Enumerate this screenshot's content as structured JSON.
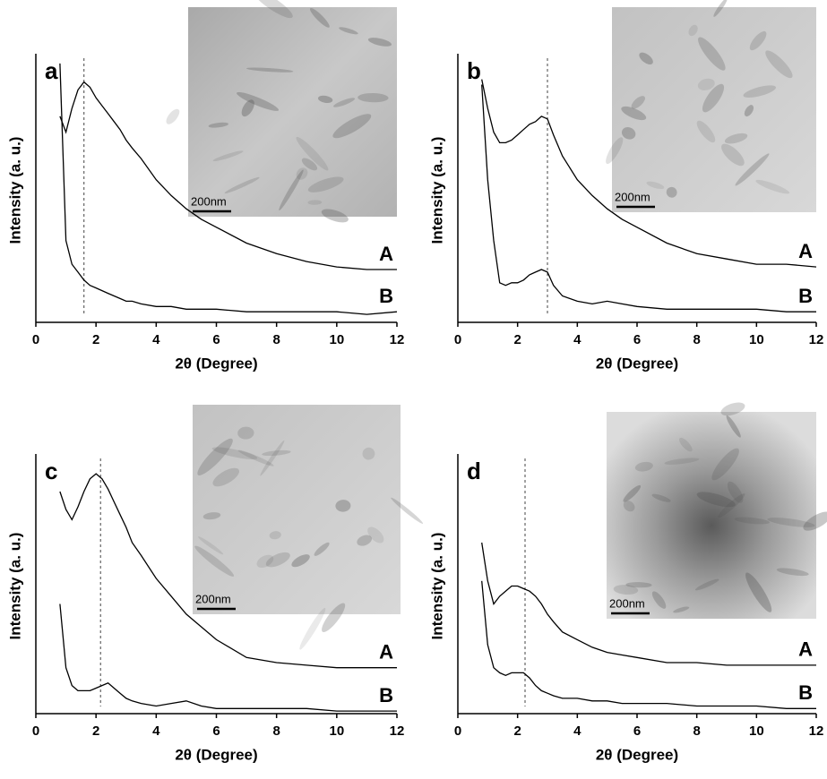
{
  "chart_data": [
    {
      "type": "line",
      "panel": "a",
      "xlabel": "2θ (Degree)",
      "ylabel": "Intensity (a. u.)",
      "xlim": [
        0,
        12
      ],
      "xticks": [
        0,
        2,
        4,
        6,
        8,
        10,
        12
      ],
      "ylim": [
        0,
        100
      ],
      "peak_x": 1.6,
      "inset_scale": "200nm",
      "x": [
        0.8,
        1,
        1.2,
        1.4,
        1.6,
        1.8,
        2,
        2.2,
        2.4,
        2.6,
        2.8,
        3,
        3.2,
        3.5,
        4,
        4.5,
        5,
        5.5,
        6,
        7,
        8,
        9,
        10,
        11,
        12
      ],
      "series": [
        {
          "name": "A",
          "color": "#000000",
          "values": [
            78,
            72,
            81,
            88,
            91,
            89,
            85,
            82,
            79,
            76,
            73,
            69,
            66,
            62,
            54,
            48,
            43,
            39,
            36,
            30,
            26,
            23,
            21,
            20,
            20
          ]
        },
        {
          "name": "B",
          "color": "#000000",
          "values": [
            98,
            31,
            22,
            19,
            16,
            14,
            13,
            12,
            11,
            10,
            9,
            8,
            8,
            7,
            6,
            6,
            5,
            5,
            5,
            4,
            4,
            4,
            4,
            3,
            4
          ]
        }
      ]
    },
    {
      "type": "line",
      "panel": "b",
      "xlabel": "2θ (Degree)",
      "ylabel": "Intensity (a. u.)",
      "xlim": [
        0,
        12
      ],
      "xticks": [
        0,
        2,
        4,
        6,
        8,
        10,
        12
      ],
      "ylim": [
        0,
        100
      ],
      "peak_x": 3.0,
      "inset_scale": "200nm",
      "x": [
        0.8,
        1,
        1.2,
        1.4,
        1.6,
        1.8,
        2,
        2.2,
        2.4,
        2.6,
        2.8,
        3,
        3.2,
        3.5,
        4,
        4.5,
        5,
        5.5,
        6,
        7,
        8,
        9,
        10,
        11,
        12
      ],
      "series": [
        {
          "name": "A",
          "color": "#000000",
          "values": [
            92,
            81,
            72,
            68,
            68,
            69,
            71,
            73,
            75,
            76,
            78,
            77,
            71,
            63,
            54,
            48,
            43,
            39,
            36,
            30,
            26,
            24,
            22,
            22,
            21
          ]
        },
        {
          "name": "B",
          "color": "#000000",
          "values": [
            90,
            54,
            31,
            15,
            14,
            15,
            15,
            16,
            18,
            19,
            20,
            19,
            14,
            10,
            8,
            7,
            8,
            7,
            6,
            5,
            5,
            5,
            5,
            4,
            4
          ]
        }
      ]
    },
    {
      "type": "line",
      "panel": "c",
      "xlabel": "2θ (Degree)",
      "ylabel": "Intensity (a. u.)",
      "xlim": [
        0,
        12
      ],
      "xticks": [
        0,
        2,
        4,
        6,
        8,
        10,
        12
      ],
      "ylim": [
        0,
        100
      ],
      "peak_x": 2.15,
      "inset_scale": "200nm",
      "x": [
        0.8,
        1,
        1.2,
        1.4,
        1.6,
        1.8,
        2,
        2.2,
        2.4,
        2.6,
        2.8,
        3,
        3.2,
        3.5,
        4,
        4.5,
        5,
        5.5,
        6,
        7,
        8,
        9,
        10,
        11,
        12
      ],
      "series": [
        {
          "name": "A",
          "color": "#000000",
          "values": [
            87,
            80,
            76,
            81,
            87,
            92,
            94,
            92,
            88,
            83,
            78,
            73,
            67,
            62,
            53,
            46,
            39,
            34,
            29,
            22,
            20,
            19,
            18,
            18,
            18
          ]
        },
        {
          "name": "B",
          "color": "#000000",
          "values": [
            43,
            18,
            11,
            9,
            9,
            9,
            10,
            11,
            12,
            10,
            8,
            6,
            5,
            4,
            3,
            4,
            5,
            3,
            2,
            2,
            2,
            2,
            1,
            1,
            1
          ]
        }
      ]
    },
    {
      "type": "line",
      "panel": "d",
      "xlabel": "2θ (Degree)",
      "ylabel": "Intensity (a. u.)",
      "xlim": [
        0,
        12
      ],
      "xticks": [
        0,
        2,
        4,
        6,
        8,
        10,
        12
      ],
      "ylim": [
        0,
        100
      ],
      "peak_x": 2.25,
      "inset_scale": "200nm",
      "x": [
        0.8,
        1,
        1.2,
        1.4,
        1.6,
        1.8,
        2,
        2.2,
        2.4,
        2.6,
        2.8,
        3,
        3.2,
        3.5,
        4,
        4.5,
        5,
        5.5,
        6,
        7,
        8,
        9,
        10,
        11,
        12
      ],
      "series": [
        {
          "name": "A",
          "color": "#000000",
          "values": [
            67,
            52,
            43,
            46,
            48,
            50,
            50,
            49,
            48,
            46,
            43,
            39,
            36,
            32,
            29,
            26,
            24,
            23,
            22,
            20,
            20,
            19,
            19,
            19,
            19
          ]
        },
        {
          "name": "B",
          "color": "#000000",
          "values": [
            52,
            27,
            18,
            16,
            15,
            16,
            16,
            16,
            14,
            11,
            9,
            8,
            7,
            6,
            6,
            5,
            5,
            4,
            4,
            4,
            3,
            3,
            3,
            2,
            2
          ]
        }
      ]
    }
  ]
}
